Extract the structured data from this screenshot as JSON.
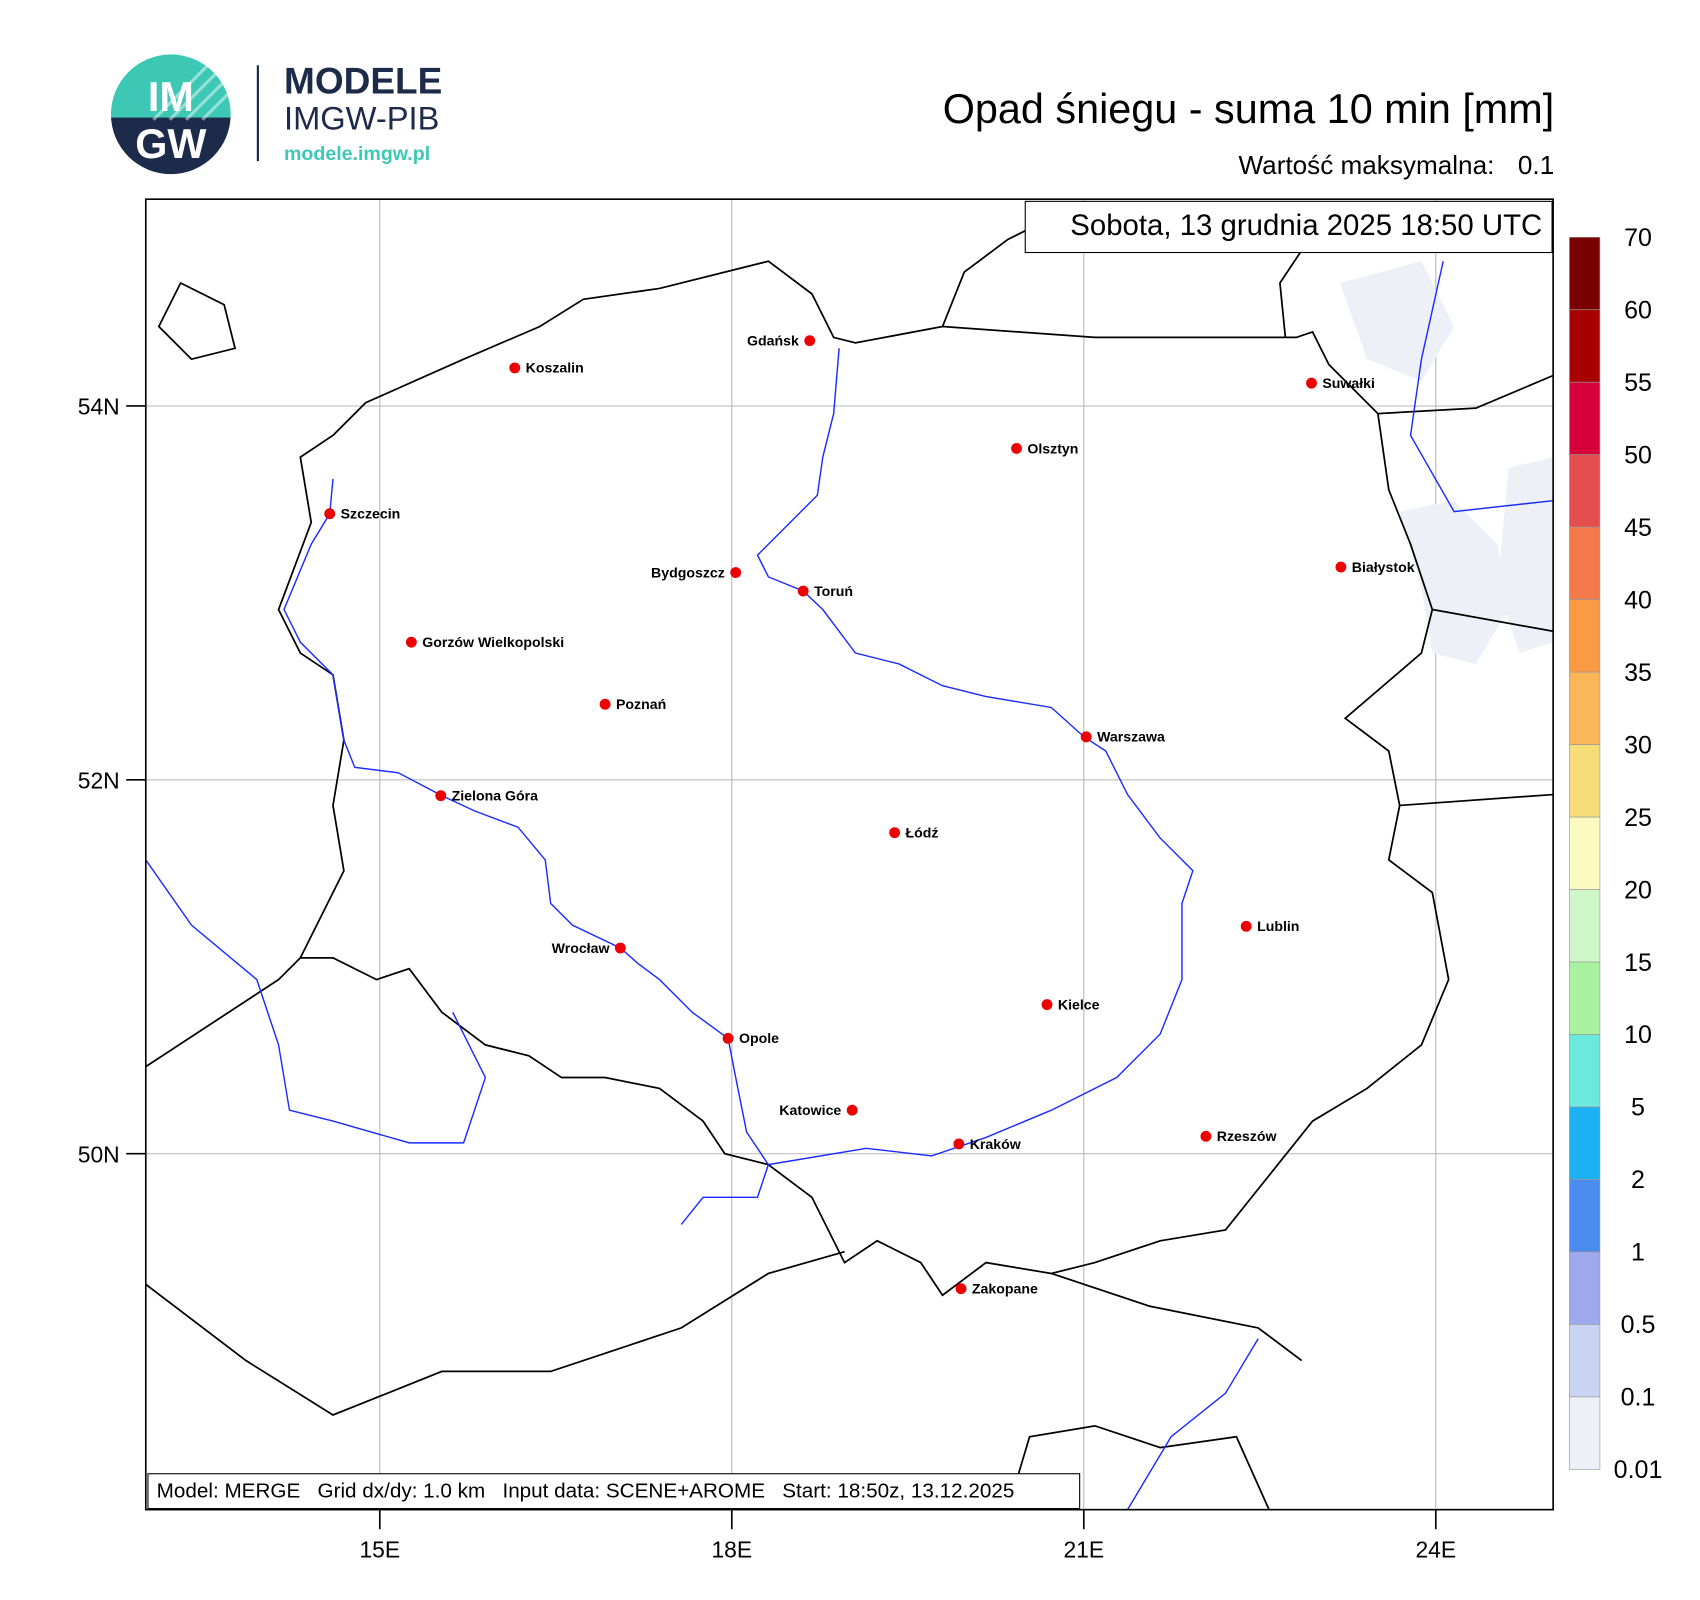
{
  "header": {
    "logo_letters": [
      "IM",
      "GW"
    ],
    "brand": "MODELE",
    "brand_sub": "IMGW-PIB",
    "url": "modele.imgw.pl"
  },
  "title": "Opad śniegu - suma 10 min [mm]",
  "max_value": {
    "label": "Wartość maksymalna:",
    "value": 0.1
  },
  "timestamp": "Sobota, 13 grudnia 2025 18:50 UTC",
  "map": {
    "lat_ticks": [
      {
        "value": 54,
        "label": "54N"
      },
      {
        "value": 52,
        "label": "52N"
      },
      {
        "value": 50,
        "label": "50N"
      }
    ],
    "lon_ticks": [
      {
        "value": 15,
        "label": "15E"
      },
      {
        "value": 18,
        "label": "18E"
      },
      {
        "value": 21,
        "label": "21E"
      },
      {
        "value": 24,
        "label": "24E"
      }
    ],
    "cities": [
      "Gdańsk",
      "Koszalin",
      "Suwałki",
      "Olsztyn",
      "Szczecin",
      "Bydgoszcz",
      "Białystok",
      "Toruń",
      "Gorzów Wielkopolski",
      "Poznań",
      "Warszawa",
      "Zielona Góra",
      "Łódź",
      "Lublin",
      "Wrocław",
      "Kielce",
      "Opole",
      "Katowice",
      "Rzeszów",
      "Kraków",
      "Zakopane"
    ]
  },
  "legend": {
    "levels": [
      70,
      60,
      55,
      50,
      45,
      40,
      35,
      30,
      25,
      20,
      15,
      10,
      5,
      2,
      1,
      0.5,
      0.1,
      0.01
    ],
    "colors": [
      "#7a0000",
      "#a80000",
      "#d8003a",
      "#e54e4e",
      "#f3784a",
      "#fb9a45",
      "#fbb65a",
      "#f7dd77",
      "#fbfbc0",
      "#cef6c8",
      "#a8f2a0",
      "#6ae9dc",
      "#1cb1f2",
      "#4a8bef",
      "#9ea8ec",
      "#c9d4f2",
      "#eef0f8"
    ]
  },
  "footer": "Model: MERGE   Grid dx/dy: 1.0 km   Input data: SCENE+AROME   Start: 18:50z, 13.12.2025"
}
